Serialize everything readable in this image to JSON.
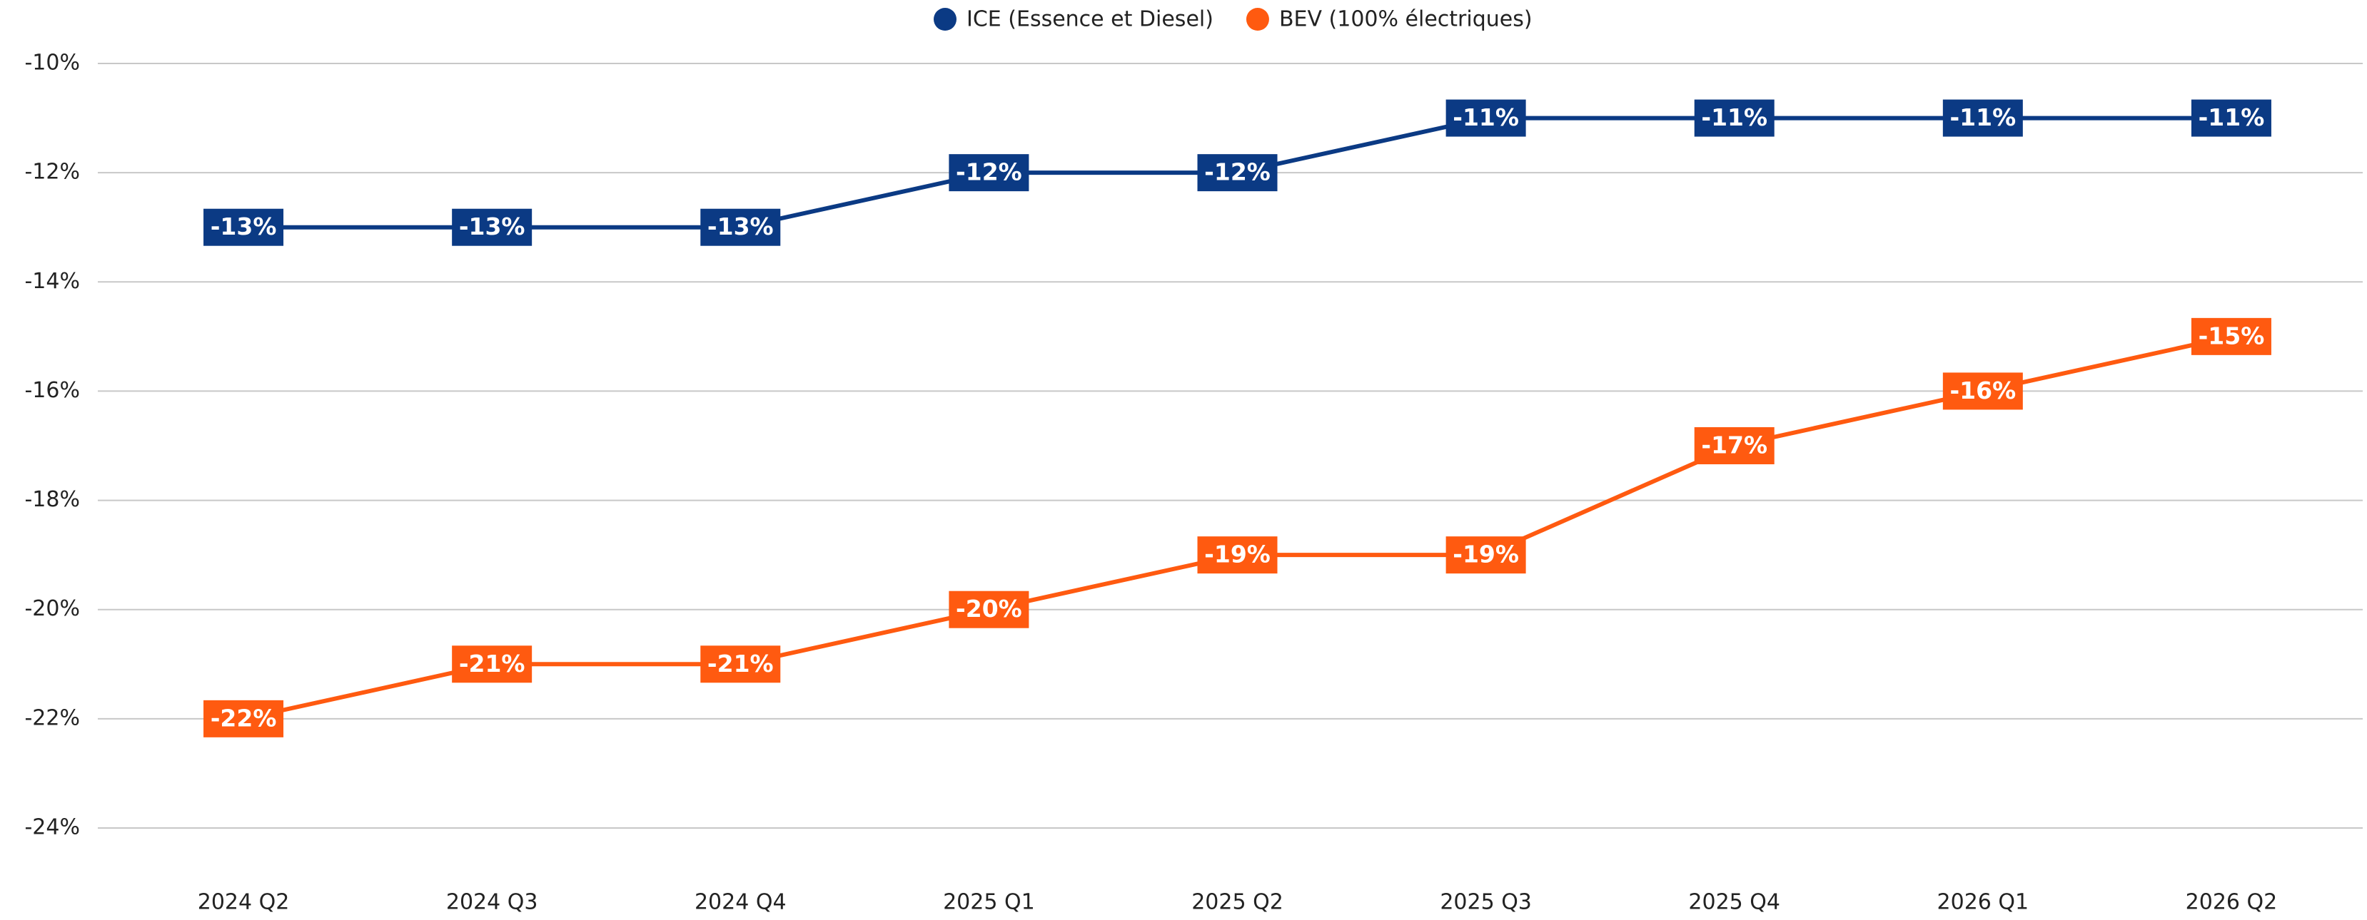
{
  "chart_data": {
    "type": "line",
    "categories": [
      "2024 Q2",
      "2024 Q3",
      "2024 Q4",
      "2025 Q1",
      "2025 Q2",
      "2025 Q3",
      "2025 Q4",
      "2026 Q1",
      "2026 Q2"
    ],
    "series": [
      {
        "name": "ICE (Essence et Diesel)",
        "color": "#0b3a84",
        "values": [
          -13,
          -13,
          -13,
          -12,
          -12,
          -11,
          -11,
          -11,
          -11
        ],
        "value_labels": [
          "-13%",
          "-13%",
          "-13%",
          "-12%",
          "-12%",
          "-11%",
          "-11%",
          "-11%",
          "-11%"
        ]
      },
      {
        "name": "BEV (100% électriques)",
        "color": "#ff5a10",
        "values": [
          -22,
          -21,
          -21,
          -20,
          -19,
          -19,
          -17,
          -16,
          -15
        ],
        "value_labels": [
          "-22%",
          "-21%",
          "-21%",
          "-20%",
          "-19%",
          "-19%",
          "-17%",
          "-16%",
          "-15%"
        ]
      }
    ],
    "ylim": [
      -24,
      -10
    ],
    "yticks": [
      {
        "value": -10,
        "label": "-10%"
      },
      {
        "value": -12,
        "label": "-12%"
      },
      {
        "value": -14,
        "label": "-14%"
      },
      {
        "value": -16,
        "label": "-16%"
      },
      {
        "value": -18,
        "label": "-18%"
      },
      {
        "value": -20,
        "label": "-20%"
      },
      {
        "value": -22,
        "label": "-22%"
      },
      {
        "value": -24,
        "label": "-24%"
      }
    ],
    "grid": true,
    "legend": "top"
  }
}
